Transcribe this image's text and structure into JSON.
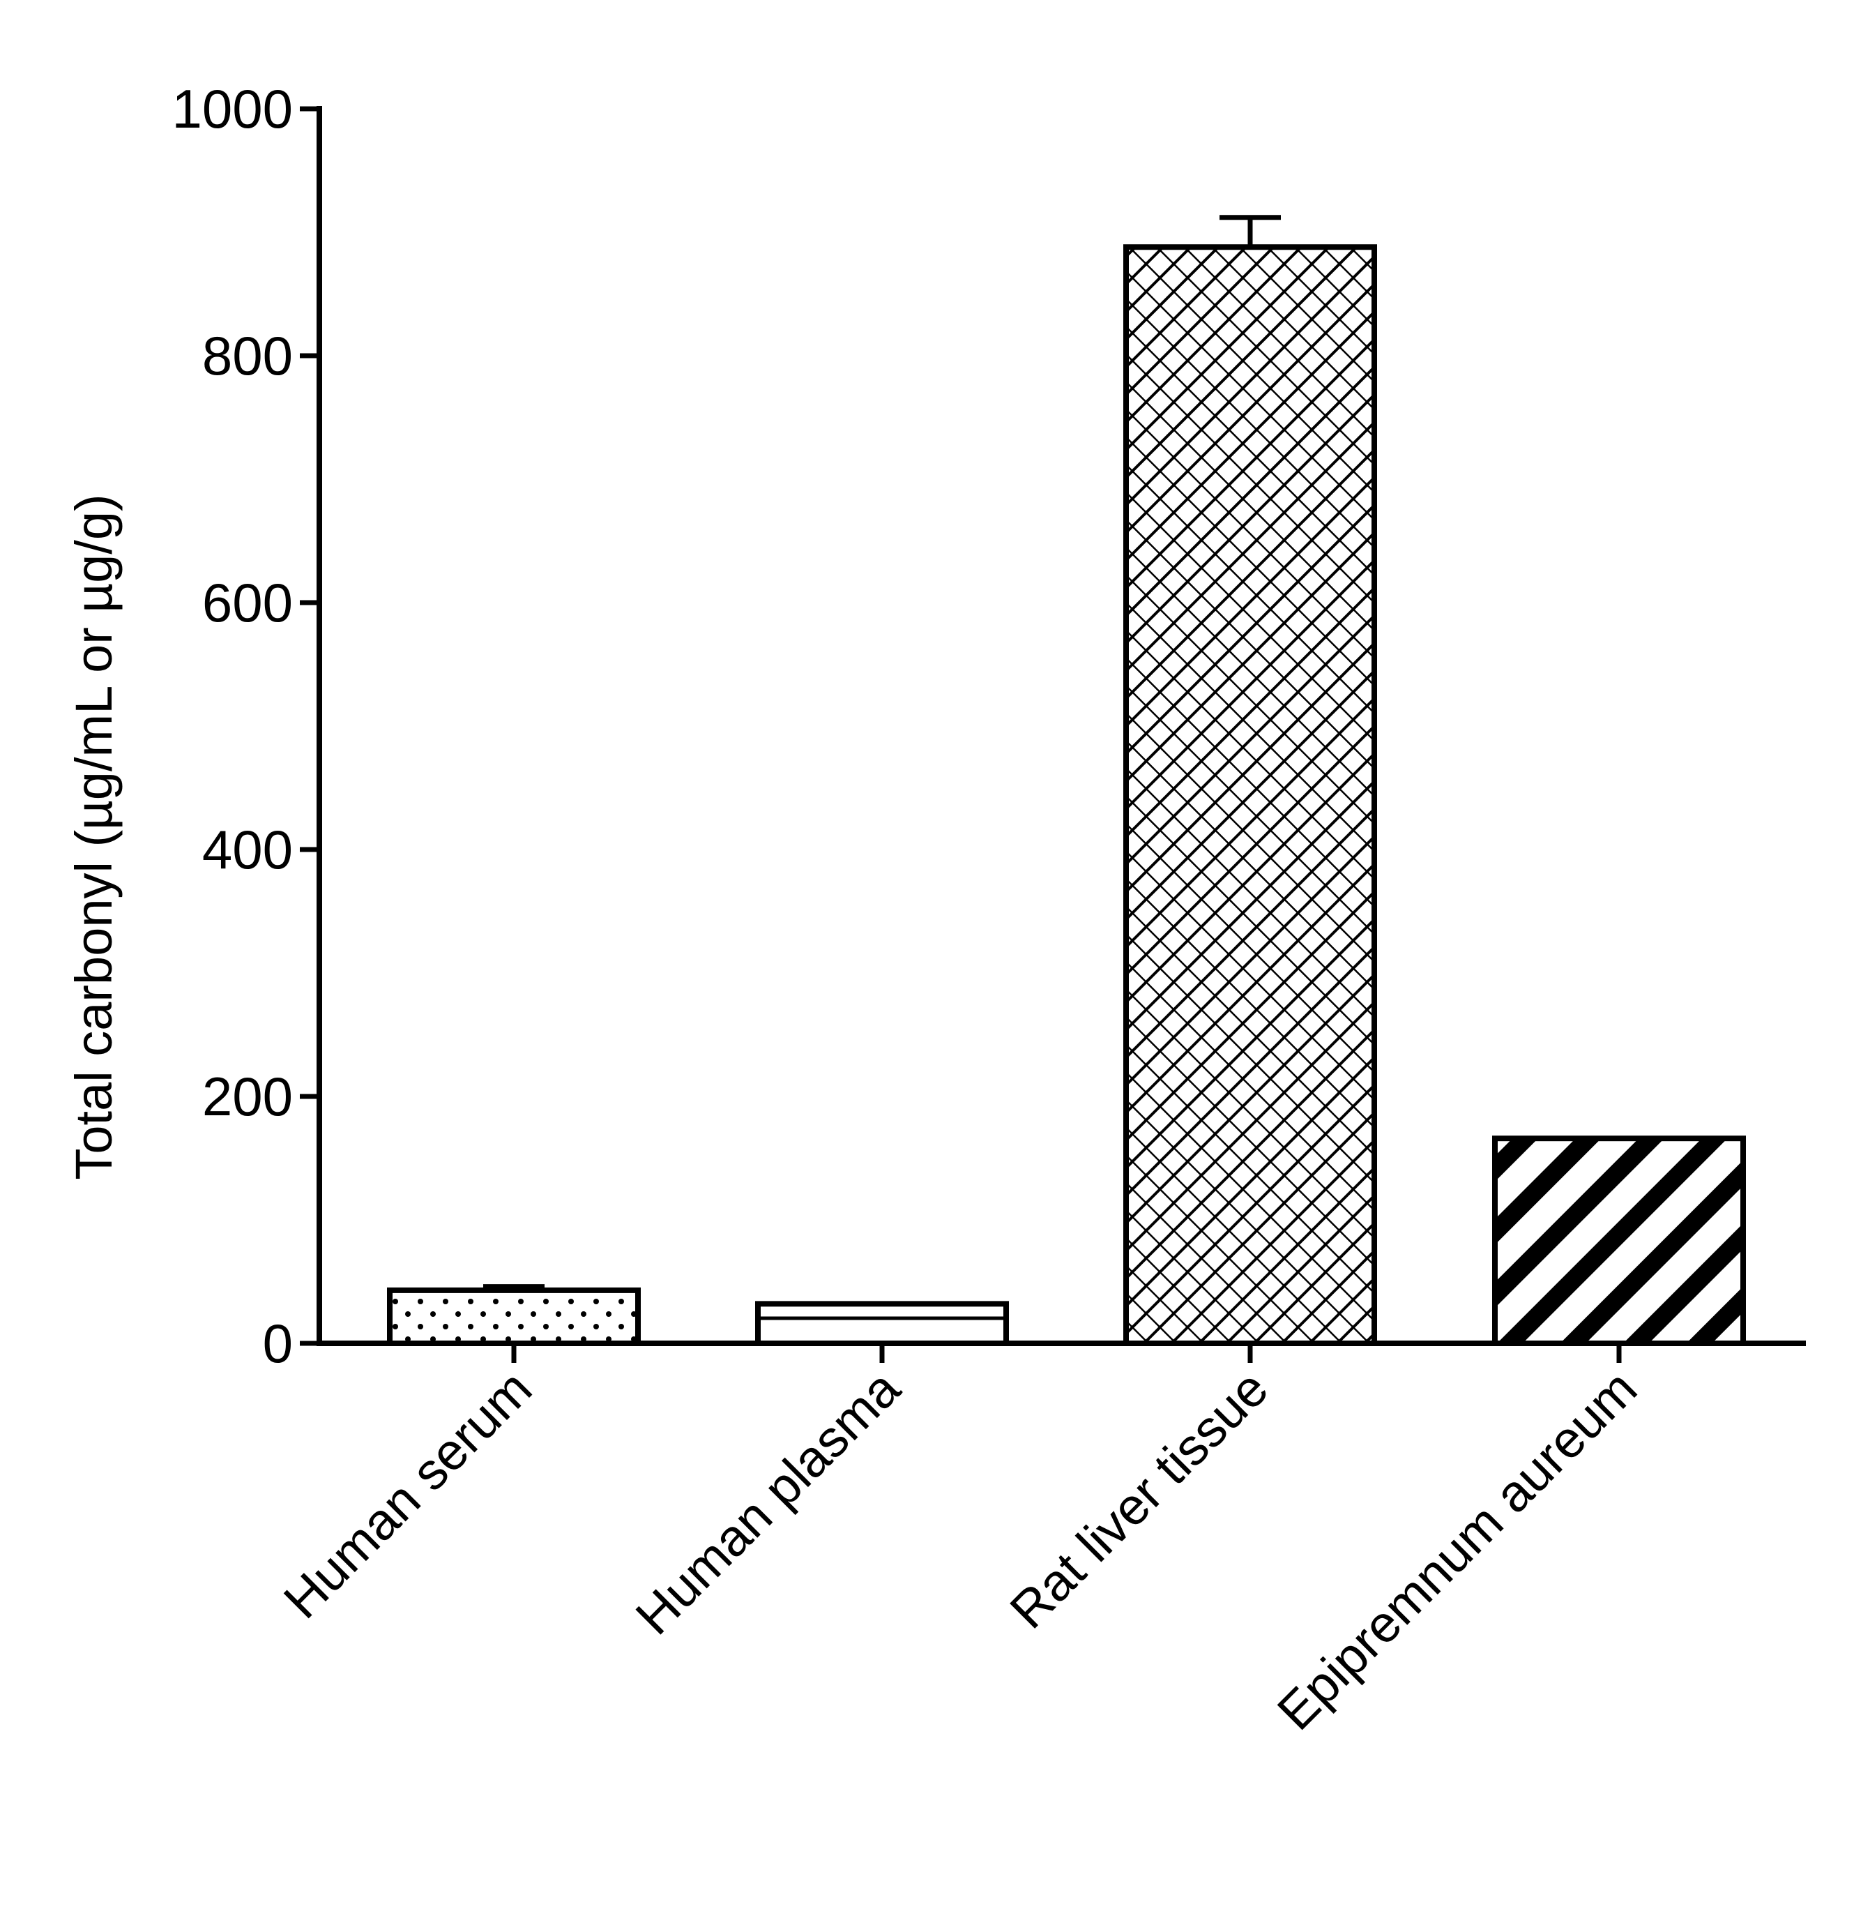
{
  "chart_data": {
    "type": "bar",
    "title": "",
    "xlabel": "",
    "ylabel": "Total carbonyl (µg/mL or µg/g)",
    "ylim": [
      0,
      1000
    ],
    "yticks": [
      0,
      200,
      400,
      600,
      800,
      1000
    ],
    "ytick_labels": [
      "0",
      "200",
      "400",
      "600",
      "800",
      "1000"
    ],
    "categories": [
      "Human serum",
      "Human plasma",
      "Rat liver tissue",
      "Epipremnum aureum"
    ],
    "values": [
      43,
      32,
      888,
      166
    ],
    "errors": [
      3,
      0,
      24,
      0
    ],
    "patterns": [
      "dots",
      "horizontal-line",
      "crosshatch-brick",
      "diagonal-stripes"
    ],
    "grid": false,
    "legend": "none",
    "colors": {
      "stroke": "#000000",
      "fill": "#ffffff"
    }
  }
}
